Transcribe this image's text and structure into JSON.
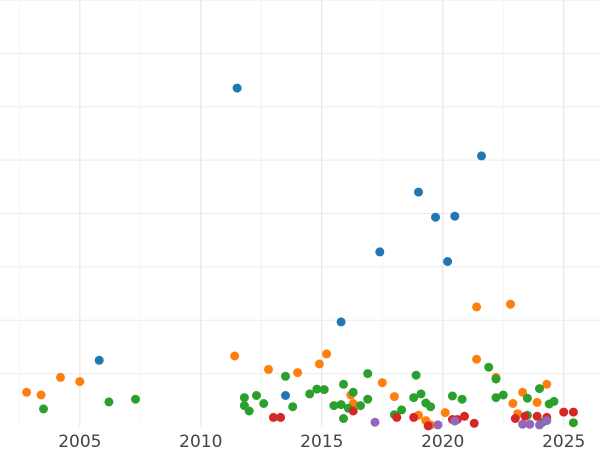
{
  "chart_data": {
    "type": "scatter",
    "title": "",
    "xlabel": "",
    "ylabel": "",
    "xlim": [
      2001.7,
      2026.5
    ],
    "ylim": [
      0,
      8
    ],
    "x_ticks": [
      2005,
      2010,
      2015,
      2020,
      2025
    ],
    "x_tick_labels": [
      "2005",
      "2010",
      "2015",
      "2020",
      "2025"
    ],
    "grid": true,
    "legend": "none",
    "series": [
      {
        "color": "#1f77b4",
        "points": [
          {
            "x": 2005.8,
            "y": 1.25
          },
          {
            "x": 2011.5,
            "y": 6.35
          },
          {
            "x": 2013.5,
            "y": 0.59
          },
          {
            "x": 2015.8,
            "y": 1.97
          },
          {
            "x": 2017.4,
            "y": 3.28
          },
          {
            "x": 2019.0,
            "y": 4.4
          },
          {
            "x": 2019.7,
            "y": 3.93
          },
          {
            "x": 2020.2,
            "y": 3.1
          },
          {
            "x": 2020.5,
            "y": 3.95
          },
          {
            "x": 2021.6,
            "y": 5.08
          }
        ]
      },
      {
        "color": "#ff7f0e",
        "points": [
          {
            "x": 2002.8,
            "y": 0.65
          },
          {
            "x": 2003.4,
            "y": 0.6
          },
          {
            "x": 2004.2,
            "y": 0.93
          },
          {
            "x": 2005.0,
            "y": 0.85
          },
          {
            "x": 2011.4,
            "y": 1.33
          },
          {
            "x": 2012.8,
            "y": 1.08
          },
          {
            "x": 2014.0,
            "y": 1.02
          },
          {
            "x": 2014.9,
            "y": 1.18
          },
          {
            "x": 2015.2,
            "y": 1.37
          },
          {
            "x": 2016.2,
            "y": 0.6
          },
          {
            "x": 2016.3,
            "y": 0.44
          },
          {
            "x": 2017.5,
            "y": 0.83
          },
          {
            "x": 2018.0,
            "y": 0.57
          },
          {
            "x": 2019.0,
            "y": 0.22
          },
          {
            "x": 2019.3,
            "y": 0.12
          },
          {
            "x": 2019.5,
            "y": 0.04
          },
          {
            "x": 2020.1,
            "y": 0.27
          },
          {
            "x": 2021.4,
            "y": 2.25
          },
          {
            "x": 2021.4,
            "y": 1.27
          },
          {
            "x": 2022.2,
            "y": 0.93
          },
          {
            "x": 2022.8,
            "y": 2.3
          },
          {
            "x": 2022.9,
            "y": 0.44
          },
          {
            "x": 2023.1,
            "y": 0.25
          },
          {
            "x": 2023.3,
            "y": 0.65
          },
          {
            "x": 2023.9,
            "y": 0.46
          },
          {
            "x": 2024.3,
            "y": 0.8
          }
        ]
      },
      {
        "color": "#2ca02c",
        "points": [
          {
            "x": 2003.5,
            "y": 0.34
          },
          {
            "x": 2006.2,
            "y": 0.47
          },
          {
            "x": 2007.3,
            "y": 0.52
          },
          {
            "x": 2011.8,
            "y": 0.55
          },
          {
            "x": 2011.8,
            "y": 0.4
          },
          {
            "x": 2012.0,
            "y": 0.3
          },
          {
            "x": 2012.3,
            "y": 0.59
          },
          {
            "x": 2012.6,
            "y": 0.44
          },
          {
            "x": 2013.5,
            "y": 0.95
          },
          {
            "x": 2013.8,
            "y": 0.38
          },
          {
            "x": 2014.5,
            "y": 0.62
          },
          {
            "x": 2014.8,
            "y": 0.71
          },
          {
            "x": 2015.1,
            "y": 0.7
          },
          {
            "x": 2015.5,
            "y": 0.4
          },
          {
            "x": 2015.8,
            "y": 0.42
          },
          {
            "x": 2015.9,
            "y": 0.8
          },
          {
            "x": 2015.9,
            "y": 0.16
          },
          {
            "x": 2016.1,
            "y": 0.35
          },
          {
            "x": 2016.3,
            "y": 0.65
          },
          {
            "x": 2016.6,
            "y": 0.4
          },
          {
            "x": 2016.9,
            "y": 0.52
          },
          {
            "x": 2016.9,
            "y": 1.0
          },
          {
            "x": 2018.0,
            "y": 0.23
          },
          {
            "x": 2018.3,
            "y": 0.32
          },
          {
            "x": 2018.8,
            "y": 0.55
          },
          {
            "x": 2018.9,
            "y": 0.97
          },
          {
            "x": 2019.1,
            "y": 0.62
          },
          {
            "x": 2019.3,
            "y": 0.45
          },
          {
            "x": 2019.5,
            "y": 0.38
          },
          {
            "x": 2020.4,
            "y": 0.58
          },
          {
            "x": 2020.8,
            "y": 0.52
          },
          {
            "x": 2021.9,
            "y": 1.12
          },
          {
            "x": 2022.2,
            "y": 0.9
          },
          {
            "x": 2022.2,
            "y": 0.55
          },
          {
            "x": 2022.5,
            "y": 0.6
          },
          {
            "x": 2023.5,
            "y": 0.54
          },
          {
            "x": 2023.5,
            "y": 0.22
          },
          {
            "x": 2024.0,
            "y": 0.72
          },
          {
            "x": 2024.1,
            "y": 0.08
          },
          {
            "x": 2024.4,
            "y": 0.43
          },
          {
            "x": 2024.6,
            "y": 0.48
          },
          {
            "x": 2025.4,
            "y": 0.08
          }
        ]
      },
      {
        "color": "#d62728",
        "points": [
          {
            "x": 2013.0,
            "y": 0.18
          },
          {
            "x": 2013.3,
            "y": 0.18
          },
          {
            "x": 2016.3,
            "y": 0.3
          },
          {
            "x": 2018.1,
            "y": 0.18
          },
          {
            "x": 2018.8,
            "y": 0.18
          },
          {
            "x": 2019.4,
            "y": 0.02
          },
          {
            "x": 2020.4,
            "y": 0.14
          },
          {
            "x": 2020.6,
            "y": 0.14
          },
          {
            "x": 2020.9,
            "y": 0.2
          },
          {
            "x": 2021.3,
            "y": 0.07
          },
          {
            "x": 2023.0,
            "y": 0.16
          },
          {
            "x": 2023.4,
            "y": 0.2
          },
          {
            "x": 2023.9,
            "y": 0.2
          },
          {
            "x": 2024.3,
            "y": 0.18
          },
          {
            "x": 2025.0,
            "y": 0.28
          },
          {
            "x": 2025.4,
            "y": 0.28
          }
        ]
      },
      {
        "color": "#9467bd",
        "points": [
          {
            "x": 2017.2,
            "y": 0.09
          },
          {
            "x": 2019.8,
            "y": 0.04
          },
          {
            "x": 2020.5,
            "y": 0.11
          },
          {
            "x": 2023.3,
            "y": 0.05
          },
          {
            "x": 2023.6,
            "y": 0.05
          },
          {
            "x": 2024.0,
            "y": 0.04
          },
          {
            "x": 2024.3,
            "y": 0.12
          }
        ]
      }
    ]
  }
}
